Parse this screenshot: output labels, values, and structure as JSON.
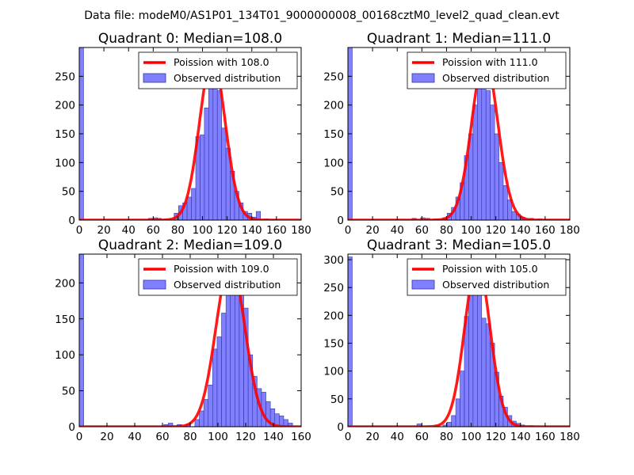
{
  "suptitle": "Data file: modeM0/AS1P01_134T01_9000000008_00168cztM0_level2_quad_clean.evt",
  "colors": {
    "bar": "#8080ff",
    "bar_edge": "#3333aa",
    "line": "#ff0000",
    "axis": "#000000"
  },
  "chart_data": [
    {
      "type": "bar",
      "title": "Quadrant 0: Median=108.0",
      "xlim": [
        0,
        180
      ],
      "ylim": [
        0,
        300
      ],
      "xticks": [
        0,
        20,
        40,
        60,
        80,
        100,
        120,
        140,
        160,
        180
      ],
      "yticks": [
        0,
        50,
        100,
        150,
        200,
        250
      ],
      "legend": {
        "placement": "top-right",
        "line_label": "Poission with 108.0",
        "bar_label": "Observed distribution"
      },
      "series": [
        {
          "name": "Observed distribution",
          "kind": "histogram",
          "bin_width": 3.5,
          "bins": [
            {
              "x": 0,
              "y": 300
            },
            {
              "x": 56,
              "y": 3
            },
            {
              "x": 60,
              "y": 4
            },
            {
              "x": 63,
              "y": 3
            },
            {
              "x": 70,
              "y": 2
            },
            {
              "x": 77,
              "y": 12
            },
            {
              "x": 80.5,
              "y": 25
            },
            {
              "x": 84,
              "y": 30
            },
            {
              "x": 87.5,
              "y": 40
            },
            {
              "x": 91,
              "y": 55
            },
            {
              "x": 94.5,
              "y": 145
            },
            {
              "x": 98,
              "y": 148
            },
            {
              "x": 101.5,
              "y": 195
            },
            {
              "x": 105,
              "y": 245
            },
            {
              "x": 108.5,
              "y": 255
            },
            {
              "x": 112,
              "y": 225
            },
            {
              "x": 115.5,
              "y": 160
            },
            {
              "x": 119,
              "y": 125
            },
            {
              "x": 122.5,
              "y": 85
            },
            {
              "x": 126,
              "y": 50
            },
            {
              "x": 129.5,
              "y": 30
            },
            {
              "x": 133,
              "y": 15
            },
            {
              "x": 136.5,
              "y": 12
            },
            {
              "x": 140,
              "y": 5
            },
            {
              "x": 143.5,
              "y": 15
            },
            {
              "x": 150,
              "y": 2
            },
            {
              "x": 157,
              "y": 1
            }
          ]
        },
        {
          "name": "Poission with 108.0",
          "kind": "poisson",
          "mean": 108.0,
          "peak": 282
        }
      ]
    },
    {
      "type": "bar",
      "title": "Quadrant 1: Median=111.0",
      "xlim": [
        0,
        180
      ],
      "ylim": [
        0,
        300
      ],
      "xticks": [
        0,
        20,
        40,
        60,
        80,
        100,
        120,
        140,
        160,
        180
      ],
      "yticks": [
        0,
        50,
        100,
        150,
        200,
        250
      ],
      "legend": {
        "placement": "top-right",
        "line_label": "Poission with 111.0",
        "bar_label": "Observed distribution"
      },
      "series": [
        {
          "name": "Observed distribution",
          "kind": "histogram",
          "bin_width": 3.5,
          "bins": [
            {
              "x": 0,
              "y": 300
            },
            {
              "x": 52,
              "y": 3
            },
            {
              "x": 59,
              "y": 4
            },
            {
              "x": 63,
              "y": 3
            },
            {
              "x": 70,
              "y": 2
            },
            {
              "x": 77,
              "y": 4
            },
            {
              "x": 80.5,
              "y": 12
            },
            {
              "x": 84,
              "y": 22
            },
            {
              "x": 87.5,
              "y": 40
            },
            {
              "x": 91,
              "y": 65
            },
            {
              "x": 94.5,
              "y": 112
            },
            {
              "x": 98,
              "y": 150
            },
            {
              "x": 101.5,
              "y": 200
            },
            {
              "x": 105,
              "y": 235
            },
            {
              "x": 108.5,
              "y": 285
            },
            {
              "x": 112,
              "y": 225
            },
            {
              "x": 115.5,
              "y": 200
            },
            {
              "x": 119,
              "y": 150
            },
            {
              "x": 122.5,
              "y": 100
            },
            {
              "x": 126,
              "y": 60
            },
            {
              "x": 129.5,
              "y": 35
            },
            {
              "x": 133,
              "y": 15
            },
            {
              "x": 136.5,
              "y": 10
            },
            {
              "x": 140,
              "y": 5
            },
            {
              "x": 147,
              "y": 3
            },
            {
              "x": 154,
              "y": 2
            },
            {
              "x": 161,
              "y": 1
            }
          ]
        },
        {
          "name": "Poission with 111.0",
          "kind": "poisson",
          "mean": 111.0,
          "peak": 282
        }
      ]
    },
    {
      "type": "bar",
      "title": "Quadrant 2: Median=109.0",
      "xlim": [
        0,
        160
      ],
      "ylim": [
        0,
        240
      ],
      "xticks": [
        0,
        20,
        40,
        60,
        80,
        100,
        120,
        140,
        160
      ],
      "yticks": [
        0,
        50,
        100,
        150,
        200
      ],
      "legend": {
        "placement": "top-right",
        "line_label": "Poission with 109.0",
        "bar_label": "Observed distribution"
      },
      "series": [
        {
          "name": "Observed distribution",
          "kind": "histogram",
          "bin_width": 3.2,
          "bins": [
            {
              "x": 0,
              "y": 240
            },
            {
              "x": 61,
              "y": 3
            },
            {
              "x": 64.2,
              "y": 5
            },
            {
              "x": 70.6,
              "y": 3
            },
            {
              "x": 77,
              "y": 3
            },
            {
              "x": 83.4,
              "y": 10
            },
            {
              "x": 86.6,
              "y": 22
            },
            {
              "x": 89.8,
              "y": 38
            },
            {
              "x": 93,
              "y": 58
            },
            {
              "x": 96.2,
              "y": 108
            },
            {
              "x": 99.4,
              "y": 125
            },
            {
              "x": 102.6,
              "y": 158
            },
            {
              "x": 105.8,
              "y": 200
            },
            {
              "x": 109,
              "y": 228
            },
            {
              "x": 112.2,
              "y": 213
            },
            {
              "x": 115.4,
              "y": 200
            },
            {
              "x": 118.6,
              "y": 165
            },
            {
              "x": 121.8,
              "y": 100
            },
            {
              "x": 125,
              "y": 70
            },
            {
              "x": 128.2,
              "y": 53
            },
            {
              "x": 131.4,
              "y": 48
            },
            {
              "x": 134.6,
              "y": 35
            },
            {
              "x": 137.8,
              "y": 25
            },
            {
              "x": 141,
              "y": 18
            },
            {
              "x": 144.2,
              "y": 15
            },
            {
              "x": 147.4,
              "y": 10
            },
            {
              "x": 150.6,
              "y": 5
            }
          ]
        },
        {
          "name": "Poission with 109.0",
          "kind": "poisson",
          "mean": 109.0,
          "peak": 228
        }
      ]
    },
    {
      "type": "bar",
      "title": "Quadrant 3: Median=105.0",
      "xlim": [
        0,
        180
      ],
      "ylim": [
        0,
        310
      ],
      "xticks": [
        0,
        20,
        40,
        60,
        80,
        100,
        120,
        140,
        160,
        180
      ],
      "yticks": [
        0,
        50,
        100,
        150,
        200,
        250,
        300
      ],
      "legend": {
        "placement": "top-right",
        "line_label": "Poission with 105.0",
        "bar_label": "Observed distribution"
      },
      "series": [
        {
          "name": "Observed distribution",
          "kind": "histogram",
          "bin_width": 3.5,
          "bins": [
            {
              "x": 0,
              "y": 305
            },
            {
              "x": 56,
              "y": 5
            },
            {
              "x": 70,
              "y": 2
            },
            {
              "x": 77,
              "y": 3
            },
            {
              "x": 80.5,
              "y": 8
            },
            {
              "x": 84,
              "y": 20
            },
            {
              "x": 87.5,
              "y": 50
            },
            {
              "x": 91,
              "y": 100
            },
            {
              "x": 94.5,
              "y": 198
            },
            {
              "x": 98,
              "y": 250
            },
            {
              "x": 101.5,
              "y": 295
            },
            {
              "x": 105,
              "y": 258
            },
            {
              "x": 108.5,
              "y": 195
            },
            {
              "x": 112,
              "y": 185
            },
            {
              "x": 115.5,
              "y": 150
            },
            {
              "x": 119,
              "y": 98
            },
            {
              "x": 122.5,
              "y": 55
            },
            {
              "x": 126,
              "y": 35
            },
            {
              "x": 129.5,
              "y": 20
            },
            {
              "x": 133,
              "y": 10
            },
            {
              "x": 136.5,
              "y": 6
            },
            {
              "x": 140,
              "y": 3
            },
            {
              "x": 147,
              "y": 2
            }
          ]
        },
        {
          "name": "Poission with 105.0",
          "kind": "poisson",
          "mean": 105.0,
          "peak": 295
        }
      ]
    }
  ]
}
